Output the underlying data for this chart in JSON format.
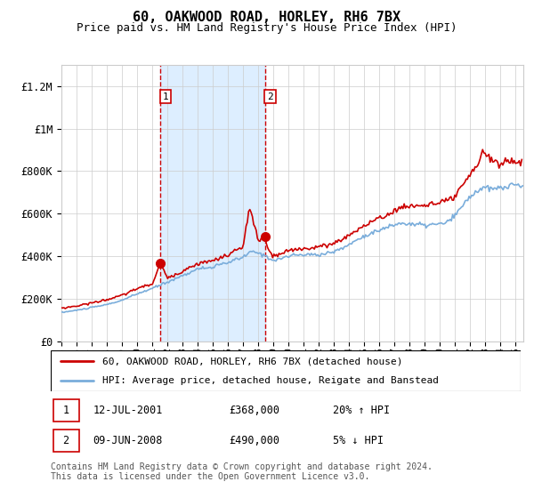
{
  "title": "60, OAKWOOD ROAD, HORLEY, RH6 7BX",
  "subtitle": "Price paid vs. HM Land Registry's House Price Index (HPI)",
  "title_fontsize": 11,
  "subtitle_fontsize": 9,
  "ylabel_ticks": [
    "£0",
    "£200K",
    "£400K",
    "£600K",
    "£800K",
    "£1M",
    "£1.2M"
  ],
  "ytick_vals": [
    0,
    200000,
    400000,
    600000,
    800000,
    1000000,
    1200000
  ],
  "ylim": [
    0,
    1300000
  ],
  "xlim_start": 1995.0,
  "xlim_end": 2025.5,
  "shade_start": 2001.53,
  "shade_end": 2008.44,
  "vline1_x": 2001.53,
  "vline2_x": 2008.44,
  "sale1_x": 2001.53,
  "sale1_y": 368000,
  "sale2_x": 2008.44,
  "sale2_y": 490000,
  "legend_line1": "60, OAKWOOD ROAD, HORLEY, RH6 7BX (detached house)",
  "legend_line2": "HPI: Average price, detached house, Reigate and Banstead",
  "table_row1": [
    "1",
    "12-JUL-2001",
    "£368,000",
    "20% ↑ HPI"
  ],
  "table_row2": [
    "2",
    "09-JUN-2008",
    "£490,000",
    "5% ↓ HPI"
  ],
  "footer": "Contains HM Land Registry data © Crown copyright and database right 2024.\nThis data is licensed under the Open Government Licence v3.0.",
  "red_color": "#cc0000",
  "blue_color": "#7aaddb",
  "shade_color": "#ddeeff",
  "background_color": "#ffffff",
  "grid_color": "#cccccc"
}
